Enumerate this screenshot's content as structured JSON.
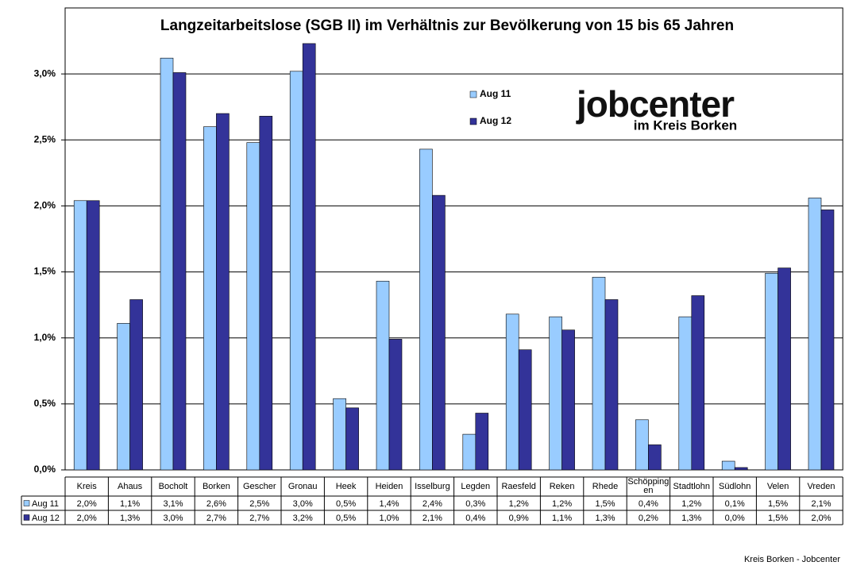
{
  "chart_data": {
    "type": "bar",
    "title": "Langzeitarbeitslose (SGB II) im Verhältnis zur Bevölkerung von 15 bis 65 Jahren",
    "categories": [
      "Kreis",
      "Ahaus",
      "Bocholt",
      "Borken",
      "Gescher",
      "Gronau",
      "Heek",
      "Heiden",
      "Isselburg",
      "Legden",
      "Raesfeld",
      "Reken",
      "Rhede",
      "Schöppingen",
      "Stadtlohn",
      "Südlohn",
      "Velen",
      "Vreden"
    ],
    "series": [
      {
        "name": "Aug 11",
        "color": "#99ccff",
        "values": [
          2.04,
          1.11,
          3.12,
          2.6,
          2.48,
          3.02,
          0.54,
          1.43,
          2.43,
          0.27,
          1.18,
          1.16,
          1.46,
          0.38,
          1.16,
          0.066,
          1.49,
          2.06
        ],
        "value_labels": [
          "2,0%",
          "1,1%",
          "3,1%",
          "2,6%",
          "2,5%",
          "3,0%",
          "0,5%",
          "1,4%",
          "2,4%",
          "0,3%",
          "1,2%",
          "1,2%",
          "1,5%",
          "0,4%",
          "1,2%",
          "0,1%",
          "1,5%",
          "2,1%"
        ]
      },
      {
        "name": "Aug 12",
        "color": "#333399",
        "values": [
          2.04,
          1.29,
          3.01,
          2.7,
          2.68,
          3.23,
          0.47,
          0.99,
          2.08,
          0.43,
          0.91,
          1.06,
          1.29,
          0.19,
          1.32,
          0.018,
          1.53,
          1.97
        ],
        "value_labels": [
          "2,0%",
          "1,3%",
          "3,0%",
          "2,7%",
          "2,7%",
          "3,2%",
          "0,5%",
          "1,0%",
          "2,1%",
          "0,4%",
          "0,9%",
          "1,1%",
          "1,3%",
          "0,2%",
          "1,3%",
          "0,0%",
          "1,5%",
          "2,0%"
        ]
      }
    ],
    "ylim": [
      0,
      3.5
    ],
    "yticks": [
      {
        "value": 0,
        "label": "0,0%"
      },
      {
        "value": 0.5,
        "label": "0,5%"
      },
      {
        "value": 1,
        "label": "1,0%"
      },
      {
        "value": 1.5,
        "label": "1,5%"
      },
      {
        "value": 2,
        "label": "2,0%"
      },
      {
        "value": 2.5,
        "label": "2,5%"
      },
      {
        "value": 3,
        "label": "3,0%"
      }
    ],
    "grid": true,
    "logo": {
      "text": "jobcenter",
      "subtext": "im Kreis Borken"
    },
    "footer": "Kreis Borken - Jobcenter"
  }
}
